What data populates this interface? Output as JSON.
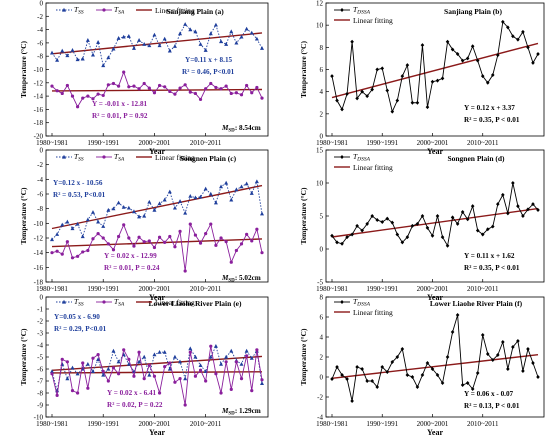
{
  "figure": {
    "x_year_labels": [
      "1980~1981",
      "1990~1991",
      "2000~2001",
      "2010~2011"
    ],
    "xlabel": "Year",
    "ylabel": "Temperature (°C)",
    "legend_linear": "Linear fitting",
    "colors": {
      "tss": "#1f3f9c",
      "tsa": "#8a1f9c",
      "fit": "#8b1a1a",
      "tdssa": "#000000"
    }
  },
  "chart_data": [
    {
      "id": "a",
      "type": "line",
      "region_title": "Sanjiang Plain (a)",
      "ylim": [
        -20,
        0
      ],
      "yticks": [
        -20,
        -18,
        -16,
        -14,
        -12,
        -10,
        -8,
        -6,
        -4,
        -2,
        0
      ],
      "legend": [
        "TSS",
        "TSA"
      ],
      "legend_sub": [
        "SS",
        "SA"
      ],
      "series": [
        {
          "name": "TSS",
          "style": "dotted-triangle",
          "color": "#1f3f9c",
          "values": [
            -7.5,
            -8.6,
            -7.2,
            -7.9,
            -7.1,
            -8.5,
            -8.4,
            -5.6,
            -7.8,
            -5.9,
            -9.4,
            -8.2,
            -6.9,
            -5.3,
            -5.1,
            -5.0,
            -6.8,
            -5.6,
            -6.2,
            -6.4,
            -4.8,
            -6.4,
            -5.4,
            -7.2,
            -6.5,
            -4.6,
            -3.2,
            -4.0,
            -4.3,
            -6.2,
            -7.1,
            -4.6,
            -3.3,
            -5.8,
            -6.2,
            -4.3,
            -6.0,
            -5.1,
            -3.9,
            -4.5,
            -5.4,
            -6.8
          ]
        },
        {
          "name": "TSA",
          "style": "solid-circle",
          "color": "#8a1f9c",
          "values": [
            -12.5,
            -13.2,
            -13.6,
            -12.4,
            -14.0,
            -15.6,
            -14.3,
            -14.0,
            -14.4,
            -13.7,
            -13.9,
            -12.3,
            -12.1,
            -12.5,
            -10.4,
            -12.6,
            -12.5,
            -12.9,
            -12.1,
            -12.8,
            -13.5,
            -12.4,
            -12.6,
            -13.3,
            -13.7,
            -12.8,
            -12.3,
            -13.4,
            -13.6,
            -14.5,
            -12.9,
            -12.1,
            -12.7,
            -12.9,
            -12.5,
            -13.6,
            -13.5,
            -13.8,
            -12.4,
            -13.5,
            -12.7,
            -14.3
          ]
        }
      ],
      "fits": [
        {
          "line": "TSS",
          "a": 0.11,
          "b": 8.15
        },
        {
          "line": "TSA",
          "a": -0.01,
          "b": -12.81
        }
      ],
      "eq1": "Y=0.11 x + 8.15",
      "stat1": "R² = 0.46, P<0.01",
      "eq2": "Y = -0.01 x - 12.81",
      "stat2": "R² = 0.01, P = 0.92",
      "msd": "MSD: 8.54cm"
    },
    {
      "id": "b",
      "type": "line",
      "region_title": "Sanjiang Plain (b)",
      "ylim": [
        0,
        12
      ],
      "yticks": [
        0,
        2,
        4,
        6,
        8,
        10,
        12
      ],
      "legend": [
        "TDSSA"
      ],
      "series": [
        {
          "name": "TDSSA",
          "style": "solid-diamond",
          "color": "#000000",
          "values": [
            5.4,
            3.2,
            2.4,
            3.8,
            8.5,
            3.4,
            4.0,
            3.6,
            4.2,
            6.0,
            6.1,
            4.1,
            2.2,
            3.2,
            5.4,
            6.4,
            3.0,
            3.0,
            8.2,
            2.6,
            4.9,
            5.0,
            5.2,
            8.5,
            7.8,
            7.4,
            6.8,
            7.0,
            8.1,
            6.8,
            5.4,
            4.8,
            5.5,
            7.3,
            10.3,
            9.8,
            9.0,
            8.7,
            9.4,
            8.0,
            6.6,
            7.4
          ]
        }
      ],
      "fits": [
        {
          "line": "TDSSA",
          "a": 0.12,
          "b": 3.37
        }
      ],
      "eq1": "Y = 0.12 x + 3.37",
      "stat1": "R² = 0.35, P < 0.01"
    },
    {
      "id": "c",
      "type": "line",
      "region_title": "Songnen Plain (c)",
      "ylim": [
        -18,
        0
      ],
      "yticks": [
        -18,
        -16,
        -14,
        -12,
        -10,
        -8,
        -6,
        -4,
        -2,
        0
      ],
      "legend": [
        "TSS",
        "TSA"
      ],
      "legend_sub": [
        "SS",
        "SA"
      ],
      "series": [
        {
          "name": "TSS",
          "style": "dotted-triangle",
          "color": "#1f3f9c",
          "values": [
            -12.2,
            -11.5,
            -10.2,
            -9.8,
            -10.7,
            -10.1,
            -11.8,
            -9.5,
            -8.5,
            -9.8,
            -10.4,
            -8.2,
            -8.0,
            -7.2,
            -7.8,
            -7.9,
            -8.4,
            -9.1,
            -9.0,
            -7.1,
            -8.2,
            -7.3,
            -6.8,
            -5.7,
            -7.9,
            -7.0,
            -8.6,
            -6.3,
            -6.5,
            -6.4,
            -5.3,
            -6.0,
            -7.2,
            -5.0,
            -4.5,
            -6.8,
            -5.4,
            -5.0,
            -4.6,
            -5.9,
            -4.3,
            -8.7
          ]
        },
        {
          "name": "TSA",
          "style": "solid-circle",
          "color": "#8a1f9c",
          "values": [
            -14.0,
            -13.8,
            -14.2,
            -12.5,
            -14.7,
            -14.5,
            -13.9,
            -13.7,
            -12.1,
            -11.4,
            -12.0,
            -12.8,
            -13.6,
            -11.8,
            -10.2,
            -12.0,
            -13.1,
            -11.9,
            -12.5,
            -12.4,
            -13.3,
            -11.9,
            -12.6,
            -11.8,
            -13.2,
            -11.1,
            -16.5,
            -10.1,
            -11.6,
            -12.7,
            -11.4,
            -10.1,
            -13.0,
            -12.0,
            -12.5,
            -15.3,
            -13.7,
            -12.8,
            -11.5,
            -12.4,
            -10.8,
            -14.0
          ]
        }
      ],
      "fits": [
        {
          "line": "TSS",
          "a": 0.12,
          "b": -10.56
        },
        {
          "line": "TSA",
          "a": 0.02,
          "b": -12.99
        }
      ],
      "eq1": "Y=0.12 x - 10.56",
      "stat1": "R² = 0.53, P<0.01",
      "eq2": "Y = 0.02 x - 12.99",
      "stat2": "R² = 0.01, P = 0.24",
      "msd": "MSD: 5.02cm"
    },
    {
      "id": "d",
      "type": "line",
      "region_title": "Songnen Plain (d)",
      "ylim": [
        -5,
        15
      ],
      "yticks": [
        -5,
        0,
        5,
        10,
        15
      ],
      "legend": [
        "TDSSA"
      ],
      "series": [
        {
          "name": "TDSSA",
          "style": "solid-diamond",
          "color": "#000000",
          "values": [
            2.0,
            1.0,
            0.8,
            1.8,
            2.2,
            3.5,
            2.8,
            3.8,
            5.0,
            4.4,
            4.1,
            4.6,
            4.0,
            2.2,
            1.0,
            1.8,
            3.5,
            3.8,
            5.0,
            3.2,
            2.0,
            5.0,
            1.8,
            0.5,
            4.8,
            3.8,
            5.6,
            4.5,
            6.5,
            2.8,
            2.2,
            3.0,
            3.4,
            6.8,
            8.2,
            5.4,
            10.0,
            6.5,
            5.0,
            6.0,
            6.8,
            5.9
          ]
        }
      ],
      "fits": [
        {
          "line": "TDSSA",
          "a": 0.11,
          "b": 1.62
        }
      ],
      "eq1": "Y = 0.11 x + 1.62",
      "stat1": "R² = 0.35, P < 0.01"
    },
    {
      "id": "e",
      "type": "line",
      "region_title": "Lower Liaohe River Plain (e)",
      "ylim": [
        -10,
        0
      ],
      "yticks": [
        -10,
        -9,
        -8,
        -7,
        -6,
        -5,
        -4,
        -3,
        -2,
        -1,
        0
      ],
      "legend": [
        "TSS",
        "TSA"
      ],
      "legend_sub": [
        "SS",
        "SA"
      ],
      "series": [
        {
          "name": "TSS",
          "style": "dotted-triangle",
          "color": "#1f3f9c",
          "values": [
            -6.2,
            -7.8,
            -5.6,
            -6.8,
            -5.9,
            -6.4,
            -6.0,
            -5.6,
            -6.2,
            -5.2,
            -6.5,
            -6.0,
            -4.5,
            -5.4,
            -4.8,
            -5.6,
            -6.2,
            -5.4,
            -5.0,
            -6.5,
            -4.8,
            -4.6,
            -4.6,
            -6.0,
            -5.0,
            -5.4,
            -6.8,
            -4.3,
            -5.0,
            -5.7,
            -6.2,
            -5.0,
            -4.1,
            -5.6,
            -5.0,
            -4.5,
            -5.3,
            -5.6,
            -4.5,
            -5.1,
            -4.5,
            -7.2
          ]
        },
        {
          "name": "TSA",
          "style": "solid-circle",
          "color": "#8a1f9c",
          "values": [
            -6.4,
            -8.2,
            -5.2,
            -5.4,
            -7.8,
            -8.0,
            -5.5,
            -7.6,
            -5.1,
            -4.8,
            -6.2,
            -7.0,
            -5.9,
            -6.4,
            -4.4,
            -5.2,
            -6.6,
            -4.6,
            -6.8,
            -5.7,
            -6.6,
            -8.0,
            -5.8,
            -5.5,
            -7.1,
            -6.8,
            -9.0,
            -4.6,
            -6.6,
            -6.1,
            -7.0,
            -4.1,
            -6.4,
            -8.0,
            -5.4,
            -7.7,
            -5.4,
            -6.8,
            -4.9,
            -7.8,
            -4.4,
            -6.9
          ]
        }
      ],
      "fits": [
        {
          "line": "TSS",
          "a": 0.05,
          "b": -6.9
        },
        {
          "line": "TSA",
          "a": 0.02,
          "b": -6.41
        }
      ],
      "eq1": "Y=0.05 x - 6.90",
      "stat1": "R² = 0.29, P<0.01",
      "eq2": "Y = 0.02 x - 6.41",
      "stat2": "R² = 0.02, P = 0.22",
      "msd": "MSD: 1.29cm"
    },
    {
      "id": "f",
      "type": "line",
      "region_title": "Lower Liaohe River Plain (f)",
      "ylim": [
        -4,
        8
      ],
      "yticks": [
        -4,
        -2,
        0,
        2,
        4,
        6,
        8
      ],
      "legend": [
        "TDSSA"
      ],
      "series": [
        {
          "name": "TDSSA",
          "style": "solid-diamond",
          "color": "#000000",
          "values": [
            -0.2,
            1.0,
            0.2,
            -0.2,
            -2.4,
            1.0,
            0.8,
            -0.4,
            -0.4,
            -1.0,
            1.0,
            0.5,
            1.5,
            2.0,
            2.8,
            0.2,
            0.0,
            -1.0,
            0.2,
            1.4,
            0.8,
            0.2,
            -0.6,
            2.0,
            4.5,
            6.2,
            -0.8,
            -0.6,
            -1.2,
            0.4,
            4.2,
            2.3,
            1.7,
            2.2,
            3.5,
            0.8,
            3.0,
            3.6,
            0.6,
            2.8,
            1.4,
            0.0
          ]
        }
      ],
      "fits": [
        {
          "line": "TDSSA",
          "a": 0.06,
          "b": -0.07
        }
      ],
      "eq1": "Y = 0.06 x - 0.07",
      "stat1": "R² = 0.13, P < 0.01"
    }
  ]
}
